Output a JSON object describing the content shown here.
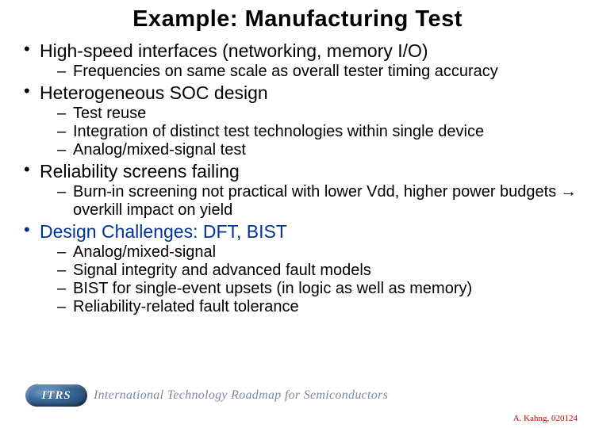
{
  "title": {
    "text": "Example:  Manufacturing Test",
    "fontsize": 29,
    "color": "#000000",
    "weight": "bold"
  },
  "bullets": [
    {
      "text": "High-speed interfaces (networking, memory I/O)",
      "fontsize": 23,
      "sub_fontsize": 20,
      "sub": [
        "Frequencies on same scale as overall tester timing accuracy"
      ]
    },
    {
      "text": "Heterogeneous SOC design",
      "fontsize": 23,
      "sub_fontsize": 20,
      "sub": [
        "Test reuse",
        "Integration of distinct test technologies within single device",
        "Analog/mixed-signal test"
      ]
    },
    {
      "text": "Reliability screens failing",
      "fontsize": 23,
      "sub_fontsize": 20,
      "sub": [
        "Burn-in screening not practical with lower Vdd, higher power budgets → overkill impact on yield"
      ]
    },
    {
      "text": "Design Challenges:  DFT, BIST",
      "fontsize": 23,
      "sub_fontsize": 20,
      "color": "#003399",
      "sub": [
        "Analog/mixed-signal",
        "Signal integrity and advanced fault models",
        "BIST for single-event upsets (in logic as well as memory)",
        "Reliability-related fault tolerance"
      ]
    }
  ],
  "footer": {
    "logo_acronym": "ITRS",
    "logo_text": "International Technology Roadmap for Semiconductors",
    "logo_text_fontsize": 16,
    "logo_text_color": "#7a8a9a"
  },
  "attribution": {
    "text": "A. Kahng, 020124",
    "fontsize": 11,
    "color": "#c00000"
  },
  "background_color": "#ffffff"
}
